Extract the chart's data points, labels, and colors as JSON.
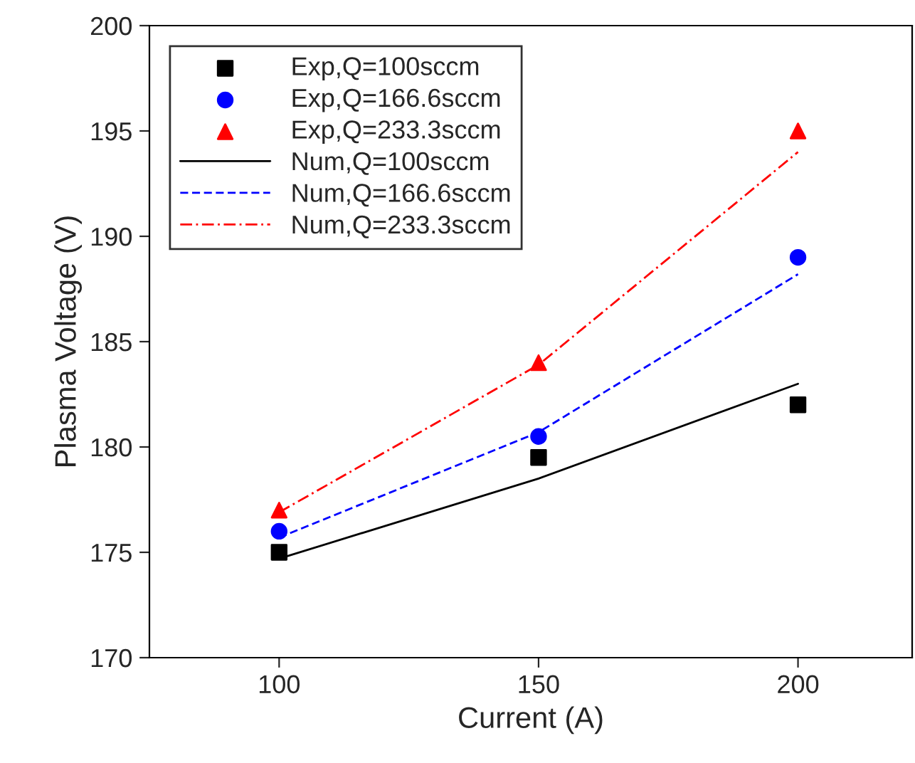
{
  "chart_data": {
    "type": "scatter",
    "xlabel": "Current (A)",
    "ylabel": "Plasma Voltage (V)",
    "x": [
      100,
      150,
      200
    ],
    "series": [
      {
        "name": "Exp,Q=100sccm",
        "marker": "square",
        "color": "#000000",
        "values": [
          175,
          179.5,
          182
        ]
      },
      {
        "name": "Exp,Q=166.6sccm",
        "marker": "circle",
        "color": "#0000ff",
        "values": [
          176,
          180.5,
          189
        ]
      },
      {
        "name": "Exp,Q=233.3sccm",
        "marker": "triangle",
        "color": "#ff0000",
        "values": [
          177,
          184,
          195
        ]
      },
      {
        "name": "Num,Q=100sccm",
        "type": "line",
        "line_style": "solid",
        "color": "#000000",
        "values": [
          174.7,
          178.5,
          183
        ]
      },
      {
        "name": "Num,Q=166.6sccm",
        "type": "line",
        "line_style": "dashed",
        "color": "#0000ff",
        "values": [
          175.7,
          180.7,
          188.2
        ]
      },
      {
        "name": "Num,Q=233.3sccm",
        "type": "line",
        "line_style": "dashdot",
        "color": "#ff0000",
        "values": [
          176.9,
          183.9,
          194
        ]
      }
    ],
    "xlim": [
      75,
      222
    ],
    "xticks": [
      100,
      150,
      200
    ],
    "ylim": [
      170,
      200
    ],
    "yticks": [
      170,
      175,
      180,
      185,
      190,
      195,
      200
    ],
    "grid": false,
    "legend": "top left"
  }
}
